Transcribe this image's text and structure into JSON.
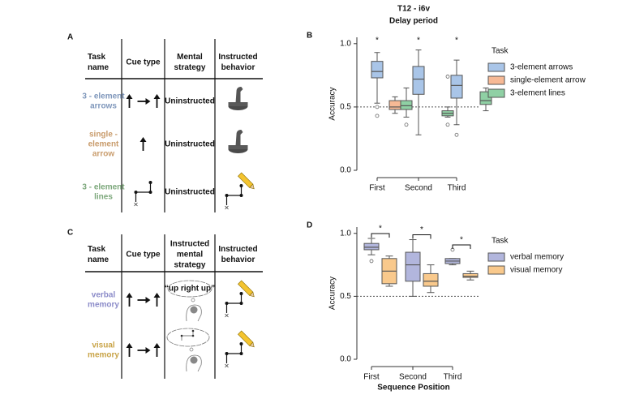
{
  "panel_a": {
    "label": "A",
    "headers": [
      [
        "Task",
        "name"
      ],
      [
        "Cue type"
      ],
      [
        "Mental",
        "strategy"
      ],
      [
        "Instructed",
        "behavior"
      ]
    ],
    "rows": [
      {
        "task": [
          "3 - element",
          "arrows"
        ],
        "color": "#7f97bb",
        "strategy": "Uninstructed"
      },
      {
        "task": [
          "single -",
          "element",
          "arrow"
        ],
        "color": "#c99c6c",
        "strategy": "Uninstructed"
      },
      {
        "task": [
          "3 - element",
          "lines"
        ],
        "color": "#7da87c",
        "strategy": "Uninstructed"
      }
    ]
  },
  "panel_c": {
    "label": "C",
    "headers": [
      [
        "Task",
        "name"
      ],
      [
        "Cue type"
      ],
      [
        "Instructed",
        "mental",
        "strategy"
      ],
      [
        "Instructed",
        "behavior"
      ]
    ],
    "rows": [
      {
        "task": [
          "verbal",
          "memory"
        ],
        "color": "#8c8cc9",
        "thought": "“up right up”"
      },
      {
        "task": [
          "visual",
          "memory"
        ],
        "color": "#c9a448"
      }
    ]
  },
  "chart_data": [
    {
      "type": "box",
      "panel": "B",
      "title": "T12 - i6v",
      "subtitle": "Delay period",
      "y_label": "Accuracy",
      "categories": [
        "First",
        "Second",
        "Third"
      ],
      "ylim": [
        0,
        1.05
      ],
      "yticks": [
        {
          "value": 0,
          "label": "0.0"
        },
        {
          "value": 0.5,
          "label": "0.5"
        },
        {
          "value": 1,
          "label": "1.0"
        }
      ],
      "reference_line": 0.5,
      "legend_title": "Task",
      "legend": "upper right",
      "significance": [
        "*",
        "*",
        "*"
      ],
      "series": [
        {
          "name": "3-element arrows",
          "color": "#a9c5e8",
          "values": [
            {
              "min": 0.53,
              "q1": 0.73,
              "median": 0.78,
              "q3": 0.86,
              "max": 0.93,
              "outliers": [
                0.5,
                0.43
              ]
            },
            {
              "min": 0.28,
              "q1": 0.6,
              "median": 0.72,
              "q3": 0.82,
              "max": 0.95,
              "outliers": []
            },
            {
              "min": 0.36,
              "q1": 0.57,
              "median": 0.67,
              "q3": 0.75,
              "max": 0.87,
              "outliers": [
                0.28
              ]
            }
          ]
        },
        {
          "name": "single-element arrow",
          "color": "#f7b995",
          "values": [
            {
              "min": 0.45,
              "q1": 0.48,
              "median": 0.5,
              "q3": 0.55,
              "max": 0.58,
              "outliers": []
            },
            null,
            null
          ]
        },
        {
          "name": "3-element lines",
          "color": "#8fd0a4",
          "values": [
            {
              "min": 0.42,
              "q1": 0.48,
              "median": 0.51,
              "q3": 0.55,
              "max": 0.65,
              "outliers": [
                0.36
              ]
            },
            {
              "min": 0.42,
              "q1": 0.43,
              "median": 0.45,
              "q3": 0.47,
              "max": 0.5,
              "outliers": [
                0.74,
                0.36
              ]
            },
            {
              "min": 0.47,
              "q1": 0.52,
              "median": 0.55,
              "q3": 0.62,
              "max": 0.65,
              "outliers": []
            }
          ]
        }
      ]
    },
    {
      "type": "box",
      "panel": "D",
      "y_label": "Accuracy",
      "x_label": "Sequence Position",
      "categories": [
        "First",
        "Second",
        "Third"
      ],
      "ylim": [
        0,
        1.05
      ],
      "yticks": [
        {
          "value": 0,
          "label": "0.0"
        },
        {
          "value": 0.5,
          "label": "0.5"
        },
        {
          "value": 1,
          "label": "1.0"
        }
      ],
      "reference_line": 0.5,
      "legend_title": "Task",
      "legend": "upper right",
      "significance": [
        "*",
        "*",
        "*"
      ],
      "brackets": true,
      "series": [
        {
          "name": "verbal memory",
          "color": "#b2b6dd",
          "values": [
            {
              "min": 0.83,
              "q1": 0.87,
              "median": 0.89,
              "q3": 0.92,
              "max": 0.96,
              "outliers": [
                0.78
              ]
            },
            {
              "min": 0.5,
              "q1": 0.62,
              "median": 0.75,
              "q3": 0.85,
              "max": 0.95,
              "outliers": []
            },
            {
              "min": 0.75,
              "q1": 0.76,
              "median": 0.78,
              "q3": 0.8,
              "max": 0.8,
              "outliers": [
                0.87
              ]
            }
          ]
        },
        {
          "name": "visual memory",
          "color": "#f9c98c",
          "values": [
            {
              "min": 0.58,
              "q1": 0.6,
              "median": 0.7,
              "q3": 0.8,
              "max": 0.82,
              "outliers": []
            },
            {
              "min": 0.53,
              "q1": 0.58,
              "median": 0.62,
              "q3": 0.68,
              "max": 0.75,
              "outliers": []
            },
            {
              "min": 0.63,
              "q1": 0.65,
              "median": 0.66,
              "q3": 0.68,
              "max": 0.7,
              "outliers": []
            }
          ]
        }
      ]
    }
  ]
}
